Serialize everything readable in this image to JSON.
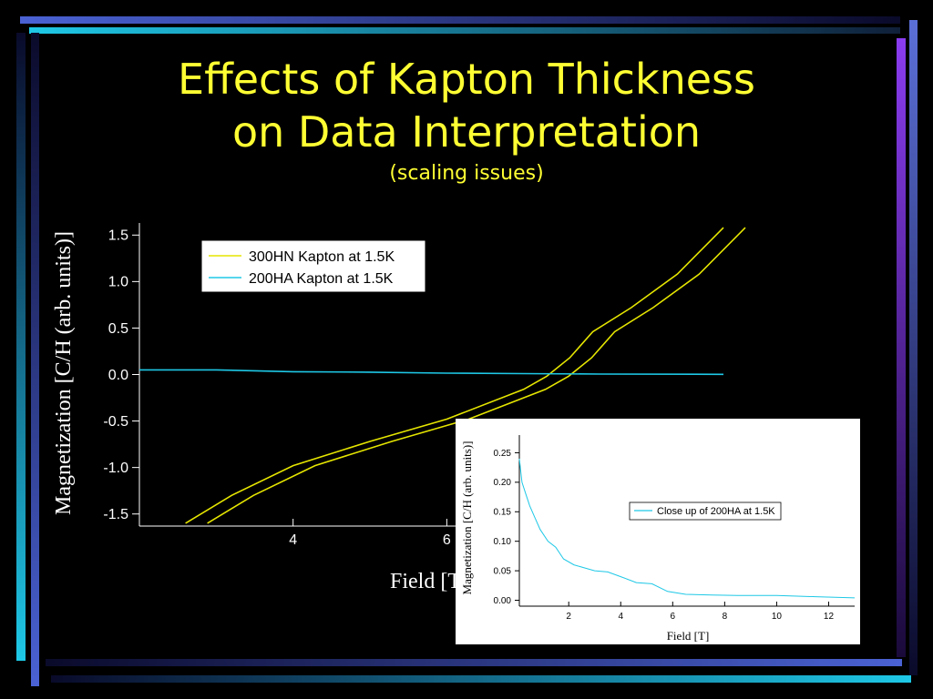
{
  "slide": {
    "title_line1": "Effects of Kapton Thickness",
    "title_line2": "on Data Interpretation",
    "subtitle": "(scaling issues)",
    "colors": {
      "title": "#ffff33",
      "background": "#000000",
      "frame_cyan": "#1ec8e6",
      "frame_blue": "#5b6fd8",
      "frame_purple": "#8a3cf0"
    }
  },
  "chart_data": [
    {
      "type": "line",
      "xlabel": "Field [T]",
      "ylabel": "Magnetization [C/H (arb. units)]",
      "xlim": [
        2,
        9.6
      ],
      "ylim": [
        -1.63,
        1.63
      ],
      "xticks": [
        "4",
        "6"
      ],
      "yticks": [
        "1.5",
        "1.0",
        "0.5",
        "0.0",
        "-0.5",
        "-1.0",
        "-1.5"
      ],
      "grid": false,
      "legend_position": "top-left",
      "series": [
        {
          "name": "300HN Kapton at 1.5K",
          "color": "#e6e600",
          "x": [
            2.6,
            3.2,
            4.0,
            5.0,
            6.0,
            7.0,
            7.3,
            7.6,
            7.9,
            8.4,
            9.0,
            9.6
          ],
          "values": [
            -1.6,
            -1.3,
            -0.98,
            -0.72,
            -0.48,
            -0.16,
            -0.02,
            0.18,
            0.46,
            0.72,
            1.08,
            1.58
          ]
        },
        {
          "name": "200HA Kapton at 1.5K",
          "color": "#1ec8e6",
          "x": [
            2.0,
            3.0,
            4.0,
            5.0,
            6.0,
            7.0,
            8.0,
            9.6
          ],
          "values": [
            0.05,
            0.05,
            0.03,
            0.025,
            0.015,
            0.01,
            0.005,
            0.002
          ]
        }
      ]
    },
    {
      "type": "line",
      "title": "",
      "xlabel": "Field [T]",
      "ylabel": "Magnetization [C/H (arb. units)]",
      "xlim": [
        0.1,
        13
      ],
      "ylim": [
        -0.01,
        0.28
      ],
      "xticks": [
        "2",
        "4",
        "6",
        "8",
        "10",
        "12"
      ],
      "yticks": [
        "0.25",
        "0.20",
        "0.15",
        "0.10",
        "0.05",
        "0.00"
      ],
      "grid": false,
      "legend_position": "right",
      "series": [
        {
          "name": "Close up of 200HA at 1.5K",
          "color": "#1ec8e6",
          "x": [
            0.1,
            0.2,
            0.35,
            0.5,
            0.7,
            0.9,
            1.2,
            1.5,
            1.8,
            2.2,
            2.6,
            3.0,
            3.5,
            4.0,
            4.6,
            5.2,
            5.8,
            6.5,
            7.5,
            8.5,
            10.0,
            11.5,
            13.0
          ],
          "values": [
            0.24,
            0.2,
            0.18,
            0.16,
            0.14,
            0.12,
            0.1,
            0.09,
            0.07,
            0.06,
            0.055,
            0.05,
            0.048,
            0.04,
            0.03,
            0.028,
            0.015,
            0.01,
            0.009,
            0.008,
            0.008,
            0.006,
            0.004
          ]
        }
      ]
    }
  ]
}
